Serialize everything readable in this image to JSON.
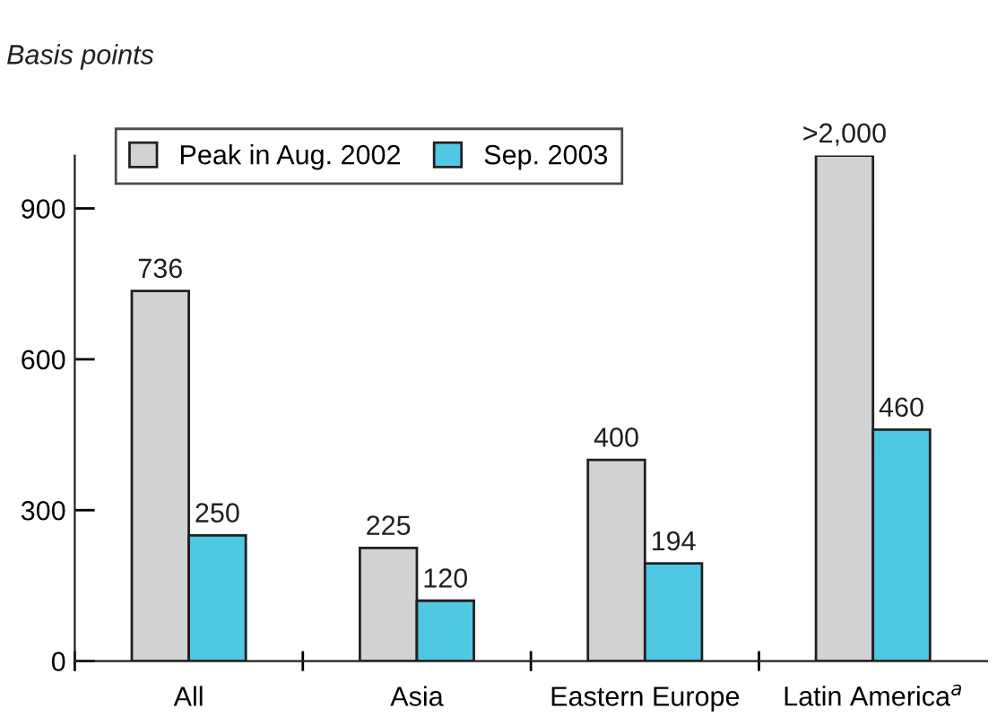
{
  "chart_data": {
    "type": "bar",
    "ylabel": "Basis points",
    "categories": [
      "All",
      "Asia",
      "Eastern Europe",
      "Latin America$^{a}$"
    ],
    "series": [
      {
        "name": "Peak in Aug. 2002",
        "color": "#d1d2d4",
        "values": [
          736,
          225,
          400,
          1005
        ],
        "value_labels": [
          "736",
          "225",
          "400",
          ">2,000"
        ]
      },
      {
        "name": "Sep. 2003",
        "color": "#4fc8e4",
        "values": [
          250,
          120,
          194,
          460
        ],
        "value_labels": [
          "250",
          "120",
          "194",
          "460"
        ]
      }
    ],
    "ylim": [
      0,
      1005
    ],
    "yticks": [
      0,
      300,
      600,
      900
    ],
    "grid": false,
    "legend": "top left"
  }
}
